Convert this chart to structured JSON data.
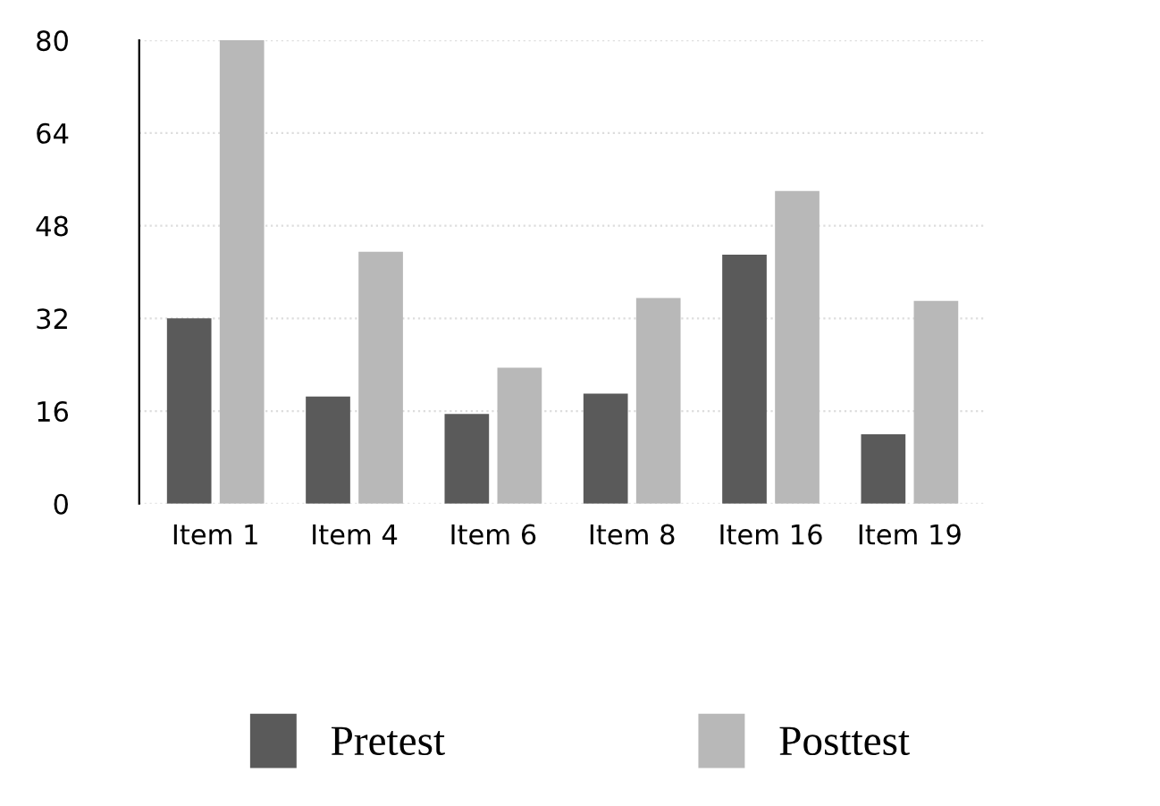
{
  "chart_data": {
    "type": "bar",
    "categories": [
      "Item 1",
      "Item 4",
      "Item 6",
      "Item 8",
      "Item 16",
      "Item 19"
    ],
    "series": [
      {
        "name": "Pretest",
        "color": "#5a5a5a",
        "values": [
          32,
          18.5,
          15.5,
          19,
          43,
          12
        ]
      },
      {
        "name": "Posttest",
        "color": "#b8b8b8",
        "values": [
          80,
          43.5,
          23.5,
          35.5,
          54,
          35
        ]
      }
    ],
    "ylim": [
      0,
      80
    ],
    "yticks": [
      0,
      16,
      32,
      48,
      64,
      80
    ],
    "grid": "y",
    "legend": "bottom"
  }
}
